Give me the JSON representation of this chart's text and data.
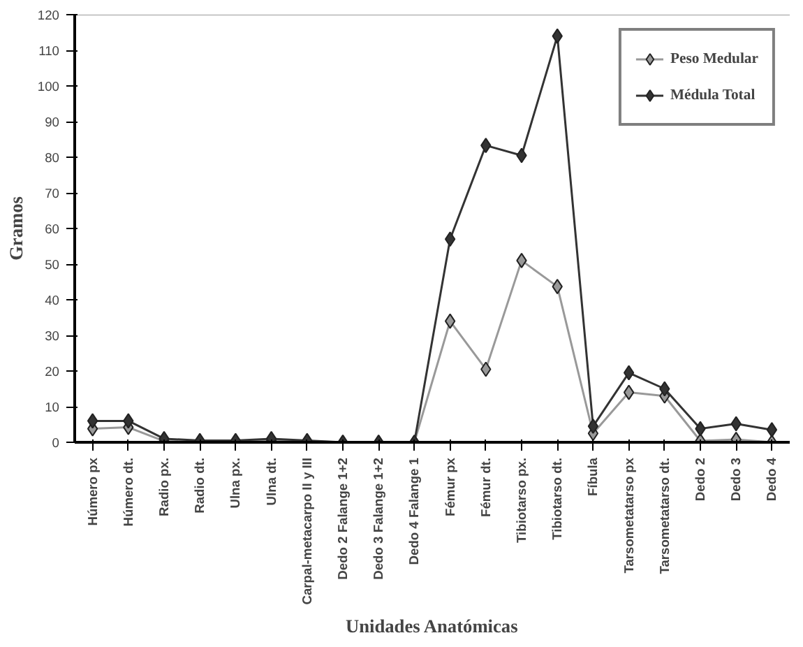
{
  "chart_data": {
    "type": "line",
    "xlabel": "Unidades Anatómicas",
    "ylabel": "Gramos",
    "categories": [
      "Húmero px",
      "Húmero dt.",
      "Radio px.",
      "Radio dt.",
      "Ulna px.",
      "Ulna dt.",
      "Carpal-metacarpo II y III",
      "Dedo 2 Falange 1+2",
      "Dedo 3 Falange 1+2",
      "Dedo 4 Falange 1",
      "Fémur px",
      "Fémur dt.",
      "Tibiotarso px.",
      "Tibiotarso dt.",
      "Fíbula",
      "Tarsometatarso px",
      "Tarsometatarso dt.",
      "Dedo 2",
      "Dedo 3",
      "Dedo 4"
    ],
    "series": [
      {
        "name": "Peso Medular",
        "color": "#999999",
        "values": [
          3.8,
          4.2,
          0.3,
          0.2,
          0.2,
          0.6,
          0.3,
          0,
          0,
          0,
          34,
          20.5,
          51,
          43.7,
          2.5,
          14,
          13,
          0.4,
          0.8,
          0
        ]
      },
      {
        "name": "Médula Total",
        "color": "#333333",
        "values": [
          6,
          6,
          1,
          0.5,
          0.5,
          1,
          0.5,
          0,
          0,
          0,
          57,
          83.3,
          80.5,
          114,
          4.5,
          19.5,
          15,
          3.8,
          5.2,
          3.5
        ]
      }
    ],
    "ylim": [
      0,
      120
    ],
    "yticks": [
      0,
      10,
      20,
      30,
      40,
      50,
      60,
      70,
      80,
      90,
      100,
      110,
      120
    ],
    "marker": "diamond",
    "line_style": "solid",
    "grid": false,
    "legend": "top right"
  }
}
